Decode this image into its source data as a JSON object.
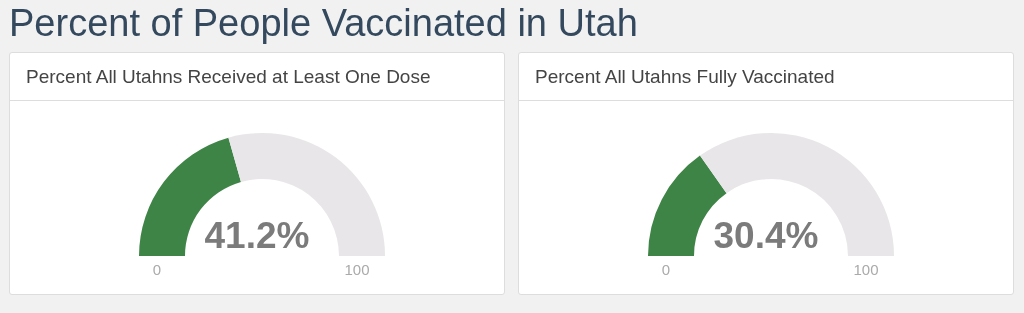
{
  "chart_data": [
    {
      "type": "donut",
      "title": "Percent of People Vaccinated in Utah",
      "subtitle": "Percent All Utahns Received at Least One Dose",
      "categories": [
        null,
        null
      ],
      "values": [
        41.2,
        58.8
      ],
      "colors": [
        "#3f8447",
        "#e8e6e8"
      ],
      "annotations": [
        "41.2%",
        "0",
        "100"
      ]
    },
    {
      "type": "donut",
      "subtitle": "Percent All Utahns Fully Vaccinated",
      "categories": [
        null,
        null
      ],
      "values": [
        30.4,
        69.6
      ],
      "colors": [
        "#3f8447",
        "#e8e6e8"
      ],
      "annotations": [
        "30.4%",
        "0",
        "100"
      ]
    }
  ]
}
